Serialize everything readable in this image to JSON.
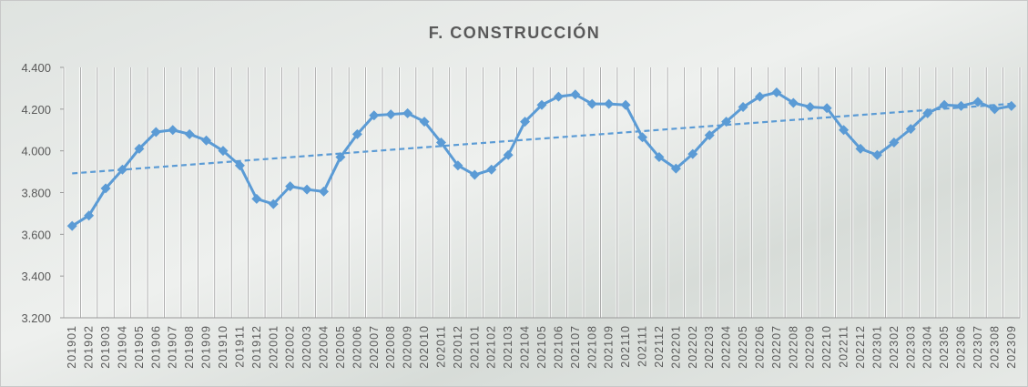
{
  "chart_data": {
    "type": "line",
    "title": "F. CONSTRUCCIÓN",
    "categories": [
      "201901",
      "201902",
      "201903",
      "201904",
      "201905",
      "201906",
      "201907",
      "201908",
      "201909",
      "201910",
      "201911",
      "201912",
      "202001",
      "202002",
      "202003",
      "202004",
      "202005",
      "202006",
      "202007",
      "202008",
      "202009",
      "202010",
      "202011",
      "202012",
      "202101",
      "202102",
      "202103",
      "202104",
      "202105",
      "202106",
      "202107",
      "202108",
      "202109",
      "202110",
      "202111",
      "202112",
      "202201",
      "202202",
      "202203",
      "202204",
      "202205",
      "202206",
      "202207",
      "202208",
      "202209",
      "202210",
      "202211",
      "202212",
      "202301",
      "202302",
      "202303",
      "202304",
      "202305",
      "202306",
      "202307",
      "202308",
      "202309"
    ],
    "values": [
      3640,
      3690,
      3820,
      3910,
      4010,
      4090,
      4100,
      4080,
      4050,
      4000,
      3930,
      3770,
      3745,
      3830,
      3815,
      3805,
      3970,
      4080,
      4170,
      4175,
      4180,
      4140,
      4040,
      3930,
      3885,
      3910,
      3980,
      4140,
      4220,
      4260,
      4270,
      4225,
      4225,
      4220,
      4065,
      3970,
      3915,
      3985,
      4075,
      4140,
      4210,
      4260,
      4280,
      4230,
      4210,
      4205,
      4100,
      4010,
      3980,
      4040,
      4105,
      4180,
      4220,
      4215,
      4235,
      4200,
      4215
    ],
    "color": "#5b9bd5",
    "ylim": [
      3200,
      4400
    ],
    "yticks": [
      {
        "value": 3200,
        "label": "3.200"
      },
      {
        "value": 3400,
        "label": "3.400"
      },
      {
        "value": 3600,
        "label": "3.600"
      },
      {
        "value": 3800,
        "label": "3.800"
      },
      {
        "value": 4000,
        "label": "4.000"
      },
      {
        "value": 4200,
        "label": "4.200"
      },
      {
        "value": 4400,
        "label": "4.400"
      }
    ],
    "trendline": "linear",
    "vertical_grid": true
  }
}
